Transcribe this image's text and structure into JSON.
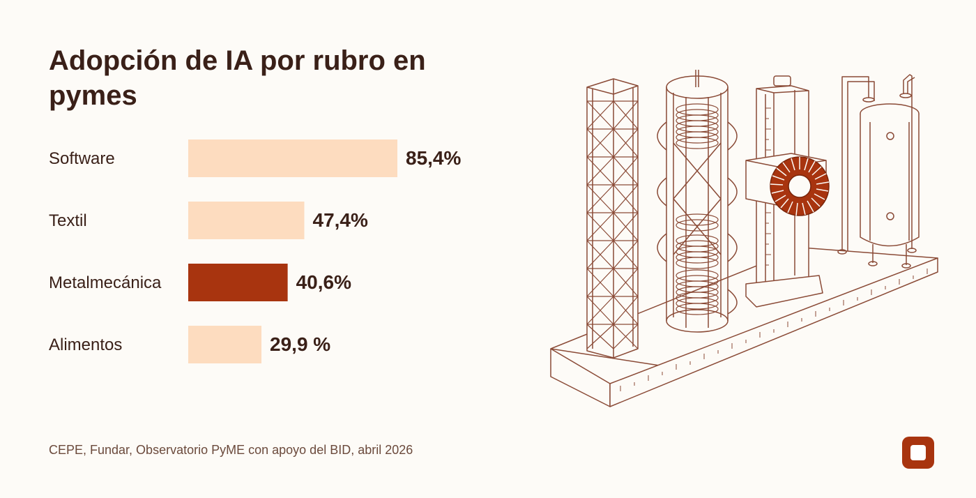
{
  "title": "Adopción de IA por rubro en pymes",
  "source": "CEPE, Fundar, Observatorio PyME con apoyo del BID, abril 2026",
  "colors": {
    "bar_default": "#fddcbf",
    "bar_highlight": "#a8340f",
    "text_dark": "#3a2018",
    "line_art": "#8a4a36",
    "accent": "#a8340f"
  },
  "illustration_icon": "lab-equipment-illustration",
  "logo_icon": "rounded-square-logo-icon",
  "chart_data": {
    "type": "bar",
    "orientation": "horizontal",
    "title": "Adopción de IA por rubro en pymes",
    "categories": [
      "Software",
      "Textil",
      "Metalmecánica",
      "Alimentos"
    ],
    "values": [
      85.4,
      47.4,
      40.6,
      29.9
    ],
    "value_labels": [
      "85,4%",
      "47,4%",
      "40,6%",
      "29,9 %"
    ],
    "highlight": "Metalmecánica",
    "xlim": [
      0,
      100
    ],
    "grid": false,
    "legend": "none"
  }
}
